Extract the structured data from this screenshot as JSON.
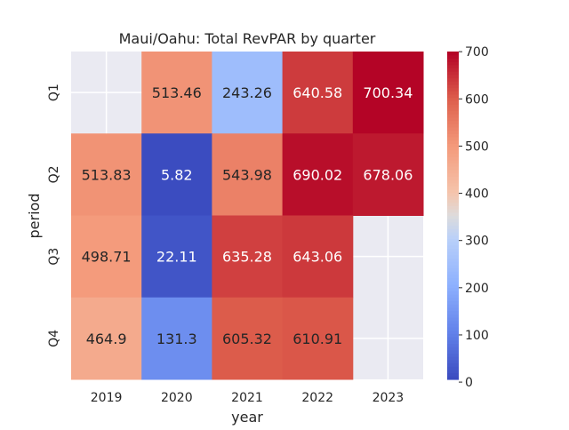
{
  "chart_data": {
    "type": "heatmap",
    "title": "Maui/Oahu: Total RevPAR by quarter",
    "xlabel": "year",
    "ylabel": "period",
    "x_categories": [
      "2019",
      "2020",
      "2021",
      "2022",
      "2023"
    ],
    "y_categories": [
      "Q1",
      "Q2",
      "Q3",
      "Q4"
    ],
    "values": [
      [
        null,
        513.46,
        243.26,
        640.58,
        700.34
      ],
      [
        513.83,
        5.82,
        543.98,
        690.02,
        678.06
      ],
      [
        498.71,
        22.11,
        635.28,
        643.06,
        null
      ],
      [
        464.9,
        131.3,
        605.32,
        610.91,
        null
      ]
    ],
    "value_labels": [
      [
        "",
        "513.46",
        "243.26",
        "640.58",
        "700.34"
      ],
      [
        "513.83",
        "5.82",
        "543.98",
        "690.02",
        "678.06"
      ],
      [
        "498.71",
        "22.11",
        "635.28",
        "643.06",
        ""
      ],
      [
        "464.9",
        "131.3",
        "605.32",
        "610.91",
        ""
      ]
    ],
    "colormap": "coolwarm",
    "vmin": 5.82,
    "vmax": 700.34,
    "colorbar_ticks": [
      "0",
      "100",
      "200",
      "300",
      "400",
      "500",
      "600",
      "700"
    ],
    "colors": {
      "missing_background": "#eaeaf2",
      "grid": "#ffffff"
    }
  }
}
